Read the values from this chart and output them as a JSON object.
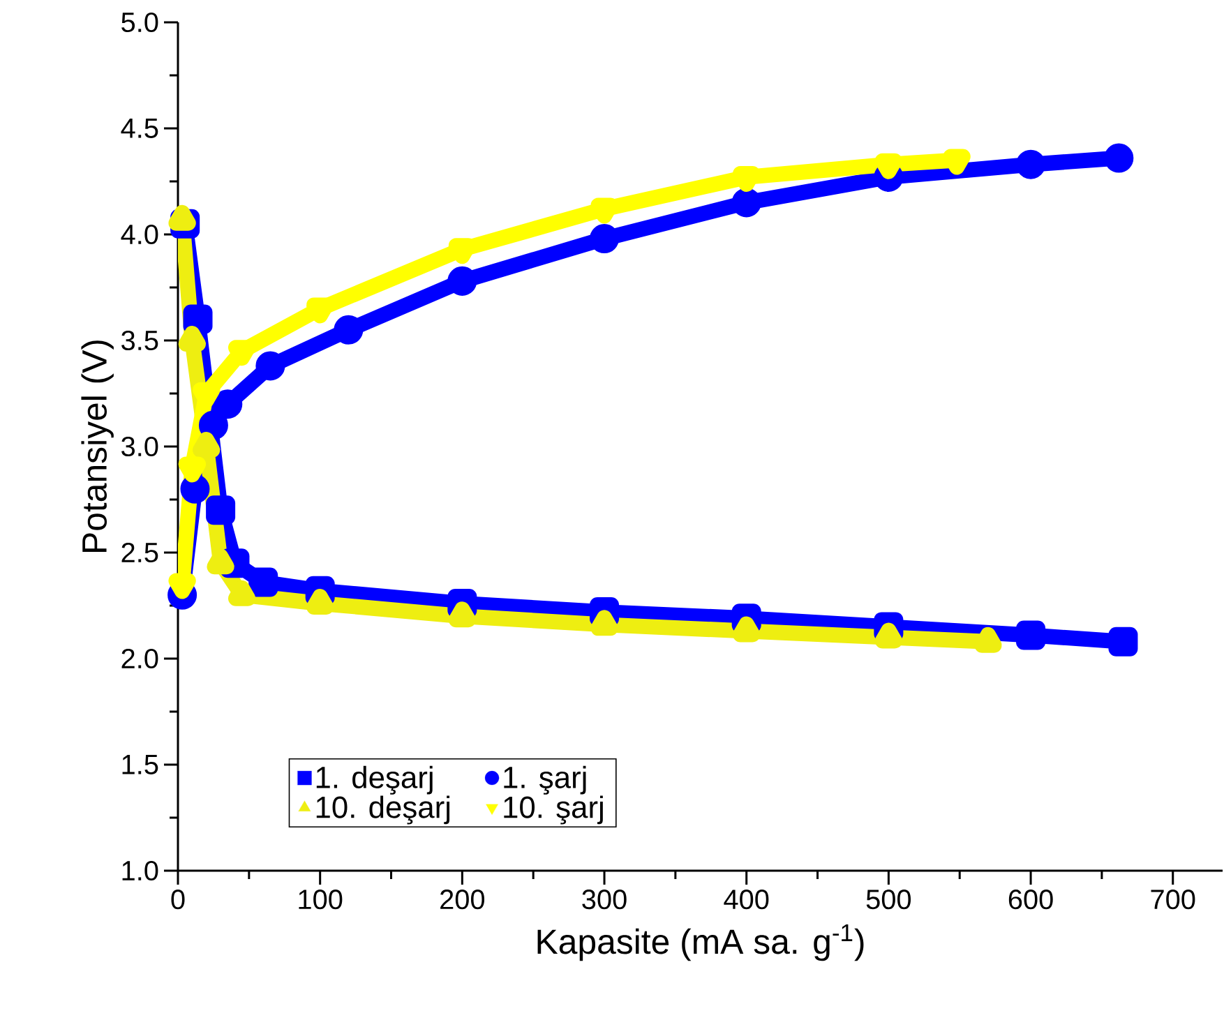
{
  "chart_data": {
    "type": "line",
    "xlabel": "Kapasite (mA sa. g$^{-1}$)",
    "ylabel": "Potansiyel (V)",
    "xlim": [
      0,
      735
    ],
    "ylim": [
      1.0,
      5.0
    ],
    "xticks": [
      0,
      100,
      200,
      300,
      400,
      500,
      600,
      700
    ],
    "yticks": [
      {
        "value": 1.0,
        "label": "1.0"
      },
      {
        "value": 1.5,
        "label": "1.5"
      },
      {
        "value": 2.0,
        "label": "2.0"
      },
      {
        "value": 2.5,
        "label": "2.5"
      },
      {
        "value": 3.0,
        "label": "3.0"
      },
      {
        "value": 3.5,
        "label": "3.5"
      },
      {
        "value": 4.0,
        "label": "4.0"
      },
      {
        "value": 4.5,
        "label": "4.5"
      },
      {
        "value": 5.0,
        "label": "5.0"
      }
    ],
    "legend": "bottom left",
    "grid": false,
    "series": [
      {
        "name": "1. deşarj",
        "color": "#0000ff",
        "marker": "square",
        "x": [
          5,
          14,
          22,
          30,
          40,
          60,
          100,
          200,
          300,
          400,
          500,
          600,
          665
        ],
        "values": [
          4.05,
          3.6,
          null,
          2.7,
          2.45,
          2.36,
          2.32,
          2.26,
          2.22,
          2.19,
          2.15,
          2.11,
          2.08
        ]
      },
      {
        "name": "1. şarj",
        "color": "#0000ff",
        "marker": "circle",
        "x": [
          3,
          12,
          25,
          35,
          65,
          120,
          200,
          300,
          400,
          500,
          600,
          662
        ],
        "values": [
          2.3,
          2.8,
          3.1,
          3.2,
          3.38,
          3.55,
          3.78,
          3.98,
          4.15,
          4.27,
          4.33,
          4.36
        ]
      },
      {
        "name": "10. deşarj",
        "color": "#eeee11",
        "marker": "triangle",
        "x": [
          3,
          10,
          20,
          30,
          45,
          100,
          200,
          300,
          400,
          500,
          570
        ],
        "values": [
          4.07,
          3.5,
          3.0,
          2.45,
          2.3,
          2.26,
          2.2,
          2.16,
          2.13,
          2.1,
          2.08
        ]
      },
      {
        "name": "10. şarj",
        "color": "#ffff00",
        "marker": "triangle-down",
        "x": [
          3,
          10,
          20,
          45,
          100,
          200,
          300,
          400,
          500,
          548
        ],
        "values": [
          2.35,
          2.9,
          3.25,
          3.45,
          3.65,
          3.93,
          4.12,
          4.27,
          4.33,
          4.35
        ]
      }
    ]
  }
}
